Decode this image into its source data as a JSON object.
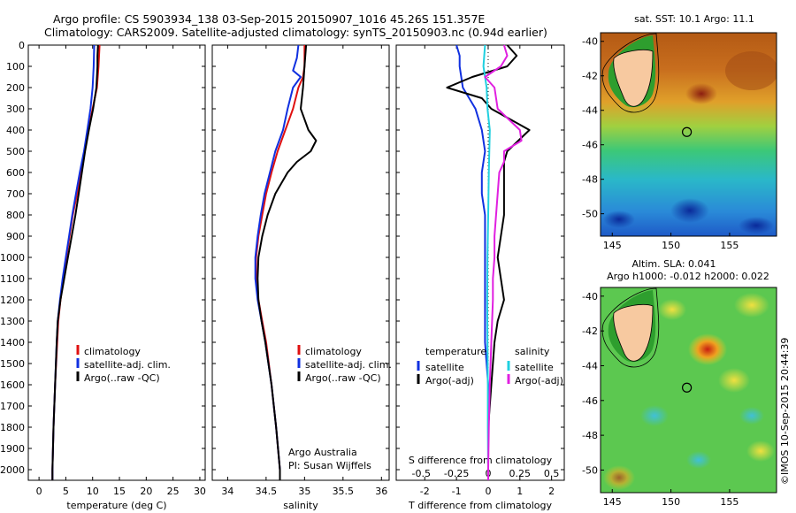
{
  "header": {
    "line1": "Argo profile: CS 5903934_138 03-Sep-2015 20150907_1016 45.26S 151.357E",
    "line2": "Climatology: CARS2009. Satellite-adjusted climatology: synTS_20150903.nc (0.94d earlier)"
  },
  "colors": {
    "climatology": "#e01010",
    "satellite": "#1030e0",
    "argo": "#000000",
    "sal_satellite": "#20d0e0",
    "sal_argo": "#e020e0"
  },
  "chart_data": [
    {
      "type": "line",
      "id": "temperature",
      "xlabel": "temperature (deg C)",
      "xlim": [
        -2,
        31
      ],
      "ylim": [
        2050,
        0
      ],
      "xticks": [
        0,
        5,
        10,
        15,
        20,
        25,
        30
      ],
      "yticks": [
        0,
        100,
        200,
        300,
        400,
        500,
        600,
        700,
        800,
        900,
        1000,
        1100,
        1200,
        1300,
        1400,
        1500,
        1600,
        1700,
        1800,
        1900,
        2000
      ],
      "legend": [
        "climatology",
        "satellite-adj. clim.",
        "Argo(..raw -QC)"
      ],
      "series": [
        {
          "name": "climatology",
          "color": "climatology",
          "depth": [
            0,
            100,
            200,
            300,
            400,
            500,
            600,
            700,
            800,
            900,
            1000,
            1100,
            1200,
            1300,
            1400,
            1600,
            1800,
            2000,
            2050
          ],
          "values": [
            11.3,
            11.1,
            10.8,
            10.0,
            9.2,
            8.5,
            7.8,
            7.1,
            6.3,
            5.7,
            5.1,
            4.5,
            4.0,
            3.6,
            3.4,
            3.0,
            2.7,
            2.5,
            2.5
          ]
        },
        {
          "name": "satellite-adj. clim.",
          "color": "satellite",
          "depth": [
            0,
            100,
            200,
            300,
            400,
            500,
            600,
            700,
            800,
            900,
            1000,
            1100,
            1200,
            1300,
            1400,
            1600,
            1800,
            2000,
            2050
          ],
          "values": [
            10.3,
            10.2,
            10.0,
            9.6,
            9.0,
            8.4,
            7.6,
            6.9,
            6.2,
            5.6,
            5.0,
            4.4,
            3.9,
            3.5,
            3.3,
            3.0,
            2.7,
            2.5,
            2.5
          ]
        },
        {
          "name": "Argo(..raw -QC)",
          "color": "argo",
          "depth": [
            0,
            50,
            100,
            200,
            300,
            400,
            500,
            600,
            700,
            800,
            900,
            1000,
            1100,
            1200,
            1300,
            1400,
            1600,
            1800,
            2000,
            2050
          ],
          "values": [
            11.0,
            10.9,
            10.9,
            10.7,
            10.1,
            9.3,
            8.6,
            8.0,
            7.4,
            6.8,
            6.1,
            5.4,
            4.7,
            4.0,
            3.5,
            3.3,
            3.0,
            2.7,
            2.5,
            2.5
          ]
        }
      ]
    },
    {
      "type": "line",
      "id": "salinity",
      "xlabel": "salinity",
      "xlim": [
        33.8,
        36.1
      ],
      "ylim": [
        2050,
        0
      ],
      "xticks": [
        34,
        34.5,
        35,
        35.5,
        36
      ],
      "legend": [
        "climatology",
        "satellite-adj. clim.",
        "Argo(..raw -QC)"
      ],
      "annotation": [
        "Argo Australia",
        "PI: Susan Wijffels"
      ],
      "series": [
        {
          "name": "climatology",
          "color": "climatology",
          "depth": [
            0,
            100,
            150,
            200,
            300,
            400,
            500,
            600,
            700,
            800,
            900,
            1000,
            1100,
            1200,
            1300,
            1400,
            1600,
            1800,
            2000,
            2050
          ],
          "values": [
            35.0,
            35.0,
            34.98,
            34.92,
            34.85,
            34.75,
            34.65,
            34.57,
            34.5,
            34.45,
            34.4,
            34.37,
            34.37,
            34.4,
            34.45,
            34.5,
            34.57,
            34.63,
            34.68,
            34.68
          ]
        },
        {
          "name": "satellite-adj. clim.",
          "color": "satellite",
          "depth": [
            0,
            60,
            120,
            150,
            200,
            300,
            400,
            500,
            600,
            700,
            800,
            900,
            1000,
            1100,
            1200,
            1300,
            1400,
            1600,
            1800,
            2000,
            2050
          ],
          "values": [
            34.92,
            34.9,
            34.85,
            34.95,
            34.85,
            34.78,
            34.72,
            34.62,
            34.55,
            34.48,
            34.43,
            34.39,
            34.36,
            34.36,
            34.39,
            34.44,
            34.49,
            34.57,
            34.63,
            34.68,
            34.68
          ]
        },
        {
          "name": "Argo(..raw -QC)",
          "color": "argo",
          "depth": [
            0,
            100,
            200,
            300,
            400,
            450,
            500,
            550,
            600,
            700,
            800,
            900,
            1000,
            1100,
            1200,
            1300,
            1400,
            1600,
            1800,
            2000,
            2050
          ],
          "values": [
            35.02,
            35.0,
            34.98,
            34.95,
            35.05,
            35.15,
            35.08,
            34.9,
            34.78,
            34.62,
            34.52,
            34.45,
            34.4,
            34.39,
            34.4,
            34.44,
            34.49,
            34.57,
            34.63,
            34.68,
            34.68
          ]
        }
      ]
    },
    {
      "type": "line",
      "id": "difference",
      "xlabel": "T difference from climatology",
      "xlabel2": "S difference from climatology",
      "xlim": [
        -2.9,
        2.4
      ],
      "ylim": [
        2050,
        0
      ],
      "xticks": [
        -2,
        -1,
        0,
        1,
        2
      ],
      "xticklabels": [
        "-2",
        "-1",
        "0",
        "1",
        "2"
      ],
      "xticks2": [
        -2,
        -1,
        0,
        1,
        2
      ],
      "xticklabels2": [
        "-0.5",
        "-0.25",
        "0",
        "0.25",
        "0.5"
      ],
      "legend_left_title": "temperature",
      "legend_right_title": "salinity",
      "legend_left": [
        "satellite",
        "Argo(-adj)"
      ],
      "legend_right": [
        "satellite",
        "Argo(-adj)"
      ],
      "series": [
        {
          "name": "satellite",
          "group": "temperature",
          "color": "satellite",
          "depth": [
            0,
            50,
            100,
            200,
            300,
            400,
            500,
            600,
            700,
            800,
            900,
            1000,
            1200,
            1400,
            1600,
            1800,
            2000,
            2050
          ],
          "values": [
            -1.0,
            -0.9,
            -0.9,
            -0.8,
            -0.4,
            -0.2,
            -0.1,
            -0.2,
            -0.2,
            -0.1,
            -0.1,
            -0.1,
            -0.1,
            -0.1,
            0,
            0,
            0,
            0
          ]
        },
        {
          "name": "Argo(-adj)",
          "group": "temperature",
          "color": "argo",
          "depth": [
            0,
            50,
            100,
            150,
            200,
            250,
            300,
            400,
            500,
            550,
            600,
            700,
            800,
            900,
            1000,
            1100,
            1200,
            1300,
            1400,
            1600,
            1800,
            2000,
            2050
          ],
          "values": [
            0.6,
            0.9,
            0.6,
            -0.5,
            -1.3,
            -0.2,
            0.1,
            1.3,
            0.6,
            0.5,
            0.5,
            0.5,
            0.5,
            0.4,
            0.3,
            0.4,
            0.5,
            0.3,
            0.2,
            0.1,
            0,
            0,
            0
          ]
        },
        {
          "name": "satellite",
          "group": "salinity",
          "color": "sal_satellite",
          "depth": [
            0,
            100,
            200,
            300,
            400,
            600,
            800,
            1000,
            1200,
            1400,
            1600,
            1800,
            2000,
            2050
          ],
          "values": [
            -0.1,
            -0.15,
            -0.05,
            -0.02,
            0.05,
            0.02,
            0.0,
            -0.02,
            -0.03,
            -0.02,
            -0.01,
            -0.01,
            0,
            0
          ]
        },
        {
          "name": "Argo(-adj)",
          "group": "salinity",
          "color": "sal_argo",
          "depth": [
            0,
            50,
            100,
            150,
            200,
            300,
            400,
            450,
            500,
            550,
            600,
            700,
            800,
            900,
            1000,
            1100,
            1200,
            1400,
            1600,
            1800,
            2000,
            2050
          ],
          "values": [
            0.5,
            0.6,
            0.4,
            -0.1,
            0.2,
            0.3,
            1.0,
            1.05,
            0.5,
            0.5,
            0.35,
            0.3,
            0.25,
            0.2,
            0.2,
            0.15,
            0.15,
            0.1,
            0.05,
            0.02,
            0,
            0
          ]
        }
      ]
    },
    {
      "type": "heatmap",
      "id": "sst_map",
      "title": "sat. SST: 10.1  Argo: 11.1",
      "xlim": [
        144,
        159
      ],
      "ylim": [
        -51.3,
        -39.5
      ],
      "xticks": [
        145,
        150,
        155
      ],
      "yticks": [
        -40,
        -42,
        -44,
        -46,
        -48,
        -50
      ],
      "argo_position": {
        "lon": 151.357,
        "lat": -45.26
      }
    },
    {
      "type": "heatmap",
      "id": "sla_map",
      "title": "Altim. SLA: 0.041",
      "subtitle": "Argo h1000: -0.012 h2000: 0.022",
      "xlim": [
        144,
        159
      ],
      "ylim": [
        -51.3,
        -39.5
      ],
      "xticks": [
        145,
        150,
        155
      ],
      "yticks": [
        -40,
        -42,
        -44,
        -46,
        -48,
        -50
      ],
      "argo_position": {
        "lon": 151.357,
        "lat": -45.26
      }
    }
  ],
  "credit": "©IMOS 10-Sep-2015 20:44:39"
}
